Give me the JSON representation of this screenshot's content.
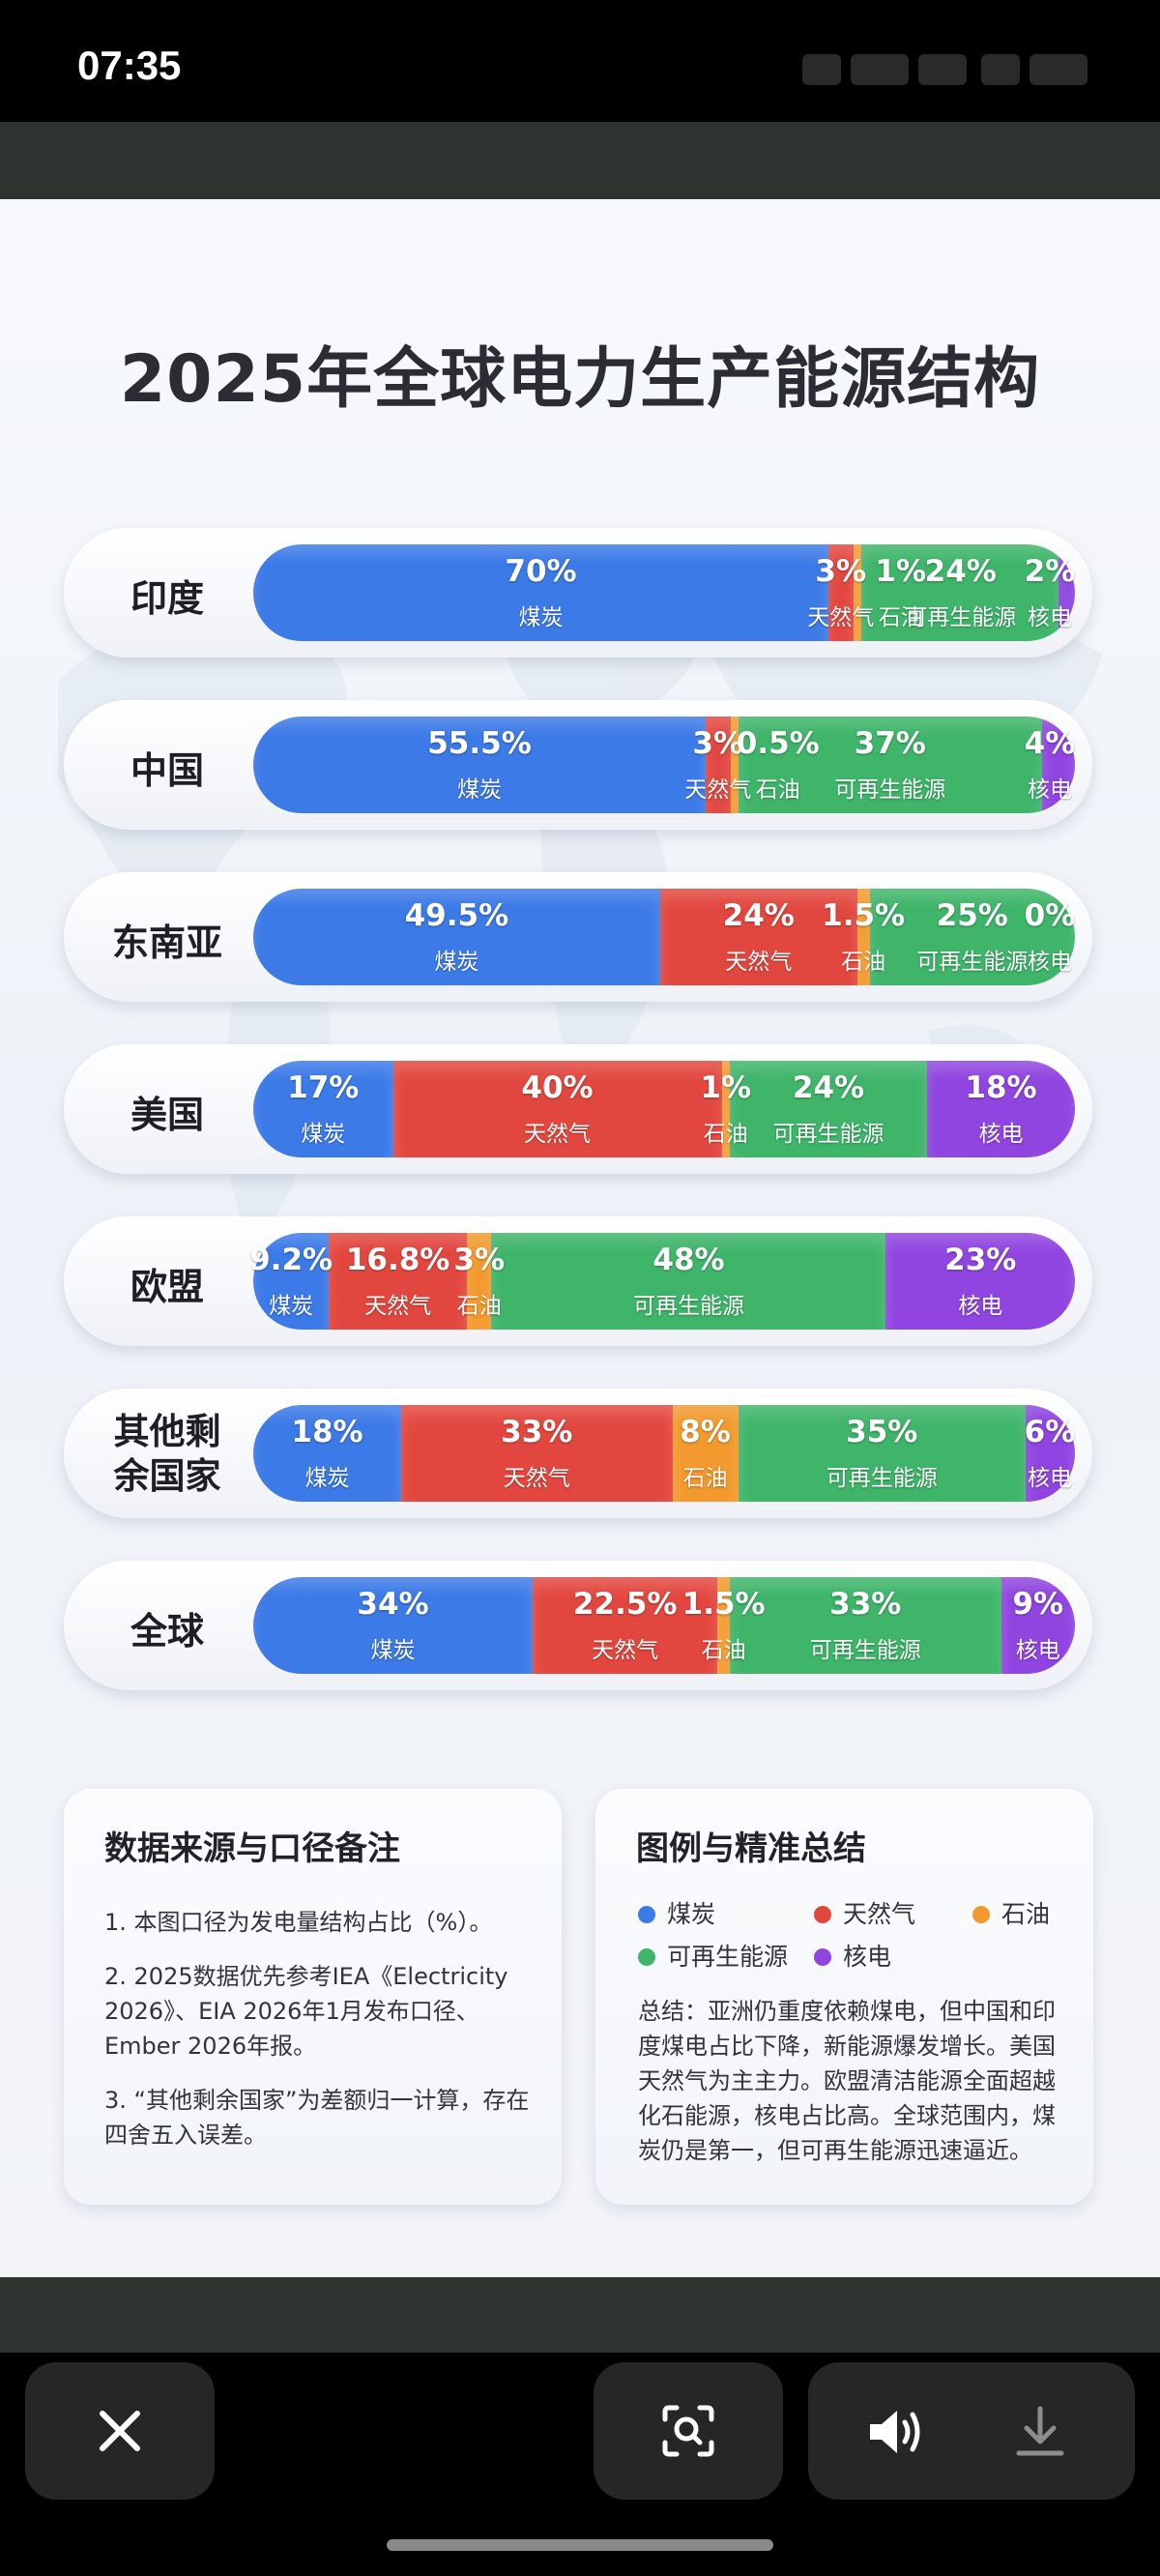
{
  "status": {
    "time": "07:35"
  },
  "title": "2025年全球电力生产能源结构",
  "colors": {
    "coal": "#3c7ae8",
    "gas": "#e2473f",
    "oil": "#f29a2e",
    "renewable": "#3fb56a",
    "nuclear": "#9045e0"
  },
  "chart_data": {
    "type": "bar",
    "stacked": true,
    "orientation": "horizontal",
    "title": "2025年全球电力生产能源结构",
    "unit": "%",
    "categories": [
      "印度",
      "中国",
      "东南亚",
      "美国",
      "欧盟",
      "其他剩余国家",
      "全球"
    ],
    "label_lines": [
      [
        "印度"
      ],
      [
        "中国"
      ],
      [
        "东南亚"
      ],
      [
        "美国"
      ],
      [
        "欧盟"
      ],
      [
        "其他剩",
        "余国家"
      ],
      [
        "全球"
      ]
    ],
    "series": [
      {
        "key": "coal",
        "name": "煤炭",
        "values": [
          70,
          55.5,
          49.5,
          17,
          9.2,
          18,
          34
        ],
        "labels": [
          "70%",
          "55.5%",
          "49.5%",
          "17%",
          "9.2%",
          "18%",
          "34%"
        ]
      },
      {
        "key": "gas",
        "name": "天然气",
        "values": [
          3,
          3,
          24,
          40,
          16.8,
          33,
          22.5
        ],
        "labels": [
          "3%",
          "3%",
          "24%",
          "40%",
          "16.8%",
          "33%",
          "22.5%"
        ]
      },
      {
        "key": "oil",
        "name": "石油",
        "values": [
          1,
          0.5,
          1.5,
          1,
          3,
          8,
          1.5
        ],
        "labels": [
          "1%",
          "0.5%",
          "1.5%",
          "1%",
          "3%",
          "8%",
          "1.5%"
        ]
      },
      {
        "key": "renewable",
        "name": "可再生能源",
        "values": [
          24,
          37,
          25,
          24,
          48,
          35,
          33
        ],
        "labels": [
          "24%",
          "37%",
          "25%",
          "24%",
          "48%",
          "35%",
          "33%"
        ]
      },
      {
        "key": "nuclear",
        "name": "核电",
        "values": [
          2,
          4,
          0,
          18,
          23,
          6,
          9
        ],
        "labels": [
          "2%",
          "4%",
          "0%",
          "18%",
          "23%",
          "6%",
          "9%"
        ]
      }
    ]
  },
  "notes": {
    "title": "数据来源与口径备注",
    "items": [
      "1. 本图口径为发电量结构占比（%）。",
      "2. 2025数据优先参考IEA《Electricity 2026》、EIA 2026年1月发布口径、Ember 2026年报。",
      "3. “其他剩余国家”为差额归一计算，存在四舍五入误差。"
    ]
  },
  "legend": {
    "title": "图例与精准总结",
    "items": [
      "煤炭",
      "天然气",
      "石油",
      "可再生能源",
      "核电"
    ],
    "summary": "总结：亚洲仍重度依赖煤电，但中国和印度煤电占比下降，新能源爆发增长。美国天然气为主主力。欧盟清洁能源全面超越化石能源，核电占比高。全球范围内，煤炭仍是第一，但可再生能源迅速逼近。"
  },
  "controls": {
    "close_icon": "close-icon",
    "lens_icon": "scan-search-icon",
    "volume_icon": "volume-icon",
    "download_icon": "download-icon"
  }
}
